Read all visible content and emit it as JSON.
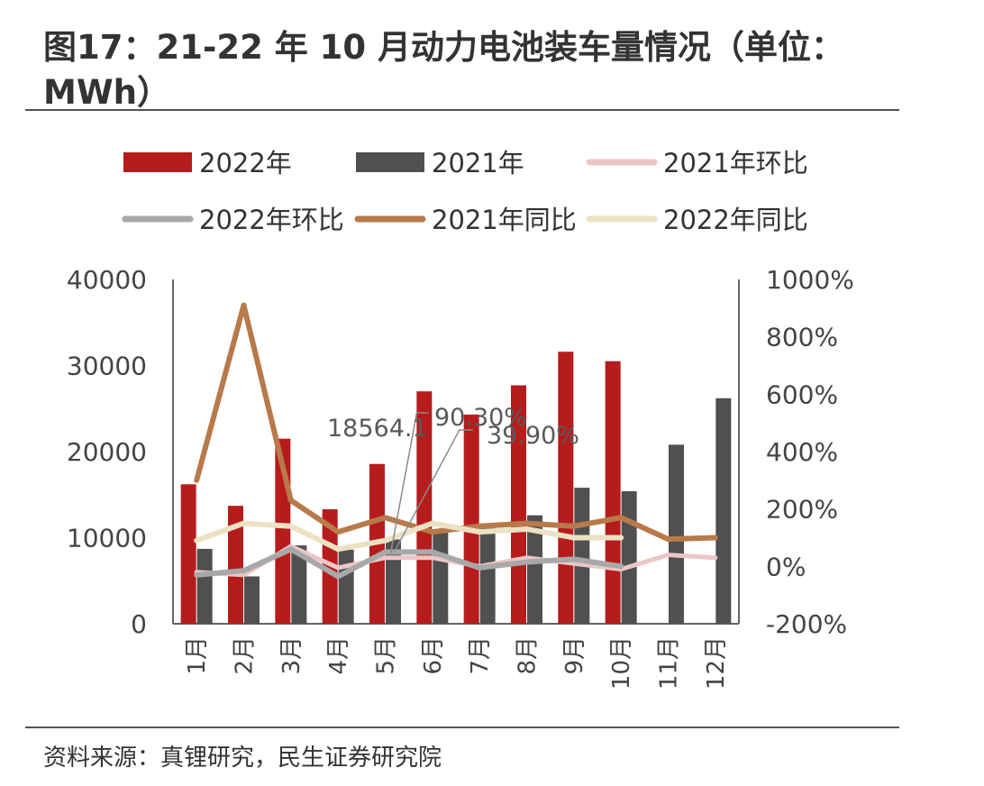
{
  "title": "图17：21-22 年 10 月动力电池装车量情况（单位：MWh）",
  "source": "资料来源：真锂研究，民生证券研究院",
  "chart_data": {
    "type": "bar",
    "categories": [
      "1月",
      "2月",
      "3月",
      "4月",
      "5月",
      "6月",
      "7月",
      "8月",
      "9月",
      "10月",
      "11月",
      "12月"
    ],
    "y_left": {
      "lim": [
        0,
        40000
      ],
      "ticks": [
        "0",
        "10000",
        "20000",
        "30000",
        "40000"
      ]
    },
    "y_right": {
      "lim": [
        -200,
        1000
      ],
      "ticks": [
        "-200%",
        "0%",
        "200%",
        "400%",
        "600%",
        "800%",
        "1000%"
      ]
    },
    "bars": [
      {
        "name": "2022年",
        "color": "#b71c1c",
        "values": [
          16200,
          13700,
          21500,
          13300,
          18564.1,
          27000,
          24300,
          27700,
          31600,
          30500,
          null,
          null
        ]
      },
      {
        "name": "2021年",
        "color": "#505050",
        "values": [
          8700,
          5500,
          9100,
          8600,
          9800,
          11000,
          11200,
          12600,
          15800,
          15400,
          20800,
          26200
        ]
      }
    ],
    "lines": [
      {
        "name": "2021年环比",
        "color": "#ecc6c6",
        "width": 5,
        "values": [
          -20,
          -30,
          70,
          -5,
          30,
          30,
          0,
          30,
          10,
          -10,
          40,
          30
        ]
      },
      {
        "name": "2022年环比",
        "color": "#a8a8a8",
        "width": 6,
        "values": [
          -30,
          -15,
          60,
          -35,
          50,
          50,
          -5,
          15,
          25,
          0,
          null,
          null
        ]
      },
      {
        "name": "2021年同比",
        "color": "#b87a4b",
        "width": 6,
        "values": [
          300,
          910,
          230,
          120,
          170,
          120,
          140,
          150,
          140,
          170,
          95,
          100
        ]
      },
      {
        "name": "2022年同比",
        "color": "#ece1c3",
        "width": 6,
        "values": [
          90,
          150,
          140,
          60,
          90,
          150,
          120,
          130,
          100,
          100,
          null,
          null
        ]
      }
    ],
    "legend_order": [
      "2022年",
      "2021年",
      "2021年环比",
      "2022年环比",
      "2021年同比",
      "2022年同比"
    ],
    "legend_placement": "top",
    "annotations": [
      {
        "text": "18564.1"
      },
      {
        "text": "90.30%"
      },
      {
        "text": "39.90%"
      }
    ],
    "grid": false
  }
}
